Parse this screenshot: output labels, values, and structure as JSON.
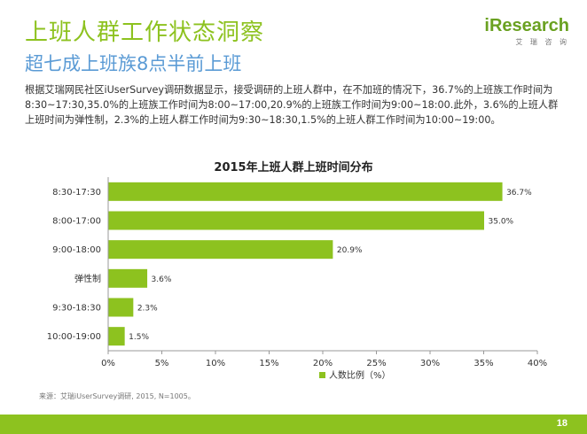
{
  "header": {
    "title": "上班人群工作状态洞察",
    "subtitle": "超七成上班族8点半前上班"
  },
  "logo": {
    "prefix": "i",
    "text": "Research",
    "sub": "艾 瑞 咨 询"
  },
  "description": "根据艾瑞网民社区iUserSurvey调研数据显示，接受调研的上班人群中，在不加班的情况下，36.7%的上班族工作时间为8:30~17:30,35.0%的上班族工作时间为8:00~17:00,20.9%的上班族工作时间为9:00~18:00.此外，3.6%的上班人群上班时间为弹性制，2.3%的上班人群工作时间为9:30~18:30,1.5%的上班人群工作时间为10:00~19:00。",
  "chart_data": {
    "type": "bar",
    "orientation": "horizontal",
    "title": "2015年上班人群上班时间分布",
    "categories": [
      "8:30-17:30",
      "8:00-17:00",
      "9:00-18:00",
      "弹性制",
      "9:30-18:30",
      "10:00-19:00"
    ],
    "values": [
      36.7,
      35.0,
      20.9,
      3.6,
      2.3,
      1.5
    ],
    "value_labels": [
      "36.7%",
      "35.0%",
      "20.9%",
      "3.6%",
      "2.3%",
      "1.5%"
    ],
    "series": [
      {
        "name": "人数比例（%）",
        "values": [
          36.7,
          35.0,
          20.9,
          3.6,
          2.3,
          1.5
        ]
      }
    ],
    "x_ticks": [
      "0%",
      "5%",
      "10%",
      "15%",
      "20%",
      "25%",
      "30%",
      "35%",
      "40%"
    ],
    "xlim": [
      0,
      40
    ],
    "grid": false,
    "legend_position": "bottom-right",
    "colors": {
      "bar": "#8dc21f"
    }
  },
  "source": "来源：艾瑞iUserSurvey调研, 2015, N=1005。",
  "footer": {
    "page_number": "18",
    "color": "#8dc21f"
  }
}
